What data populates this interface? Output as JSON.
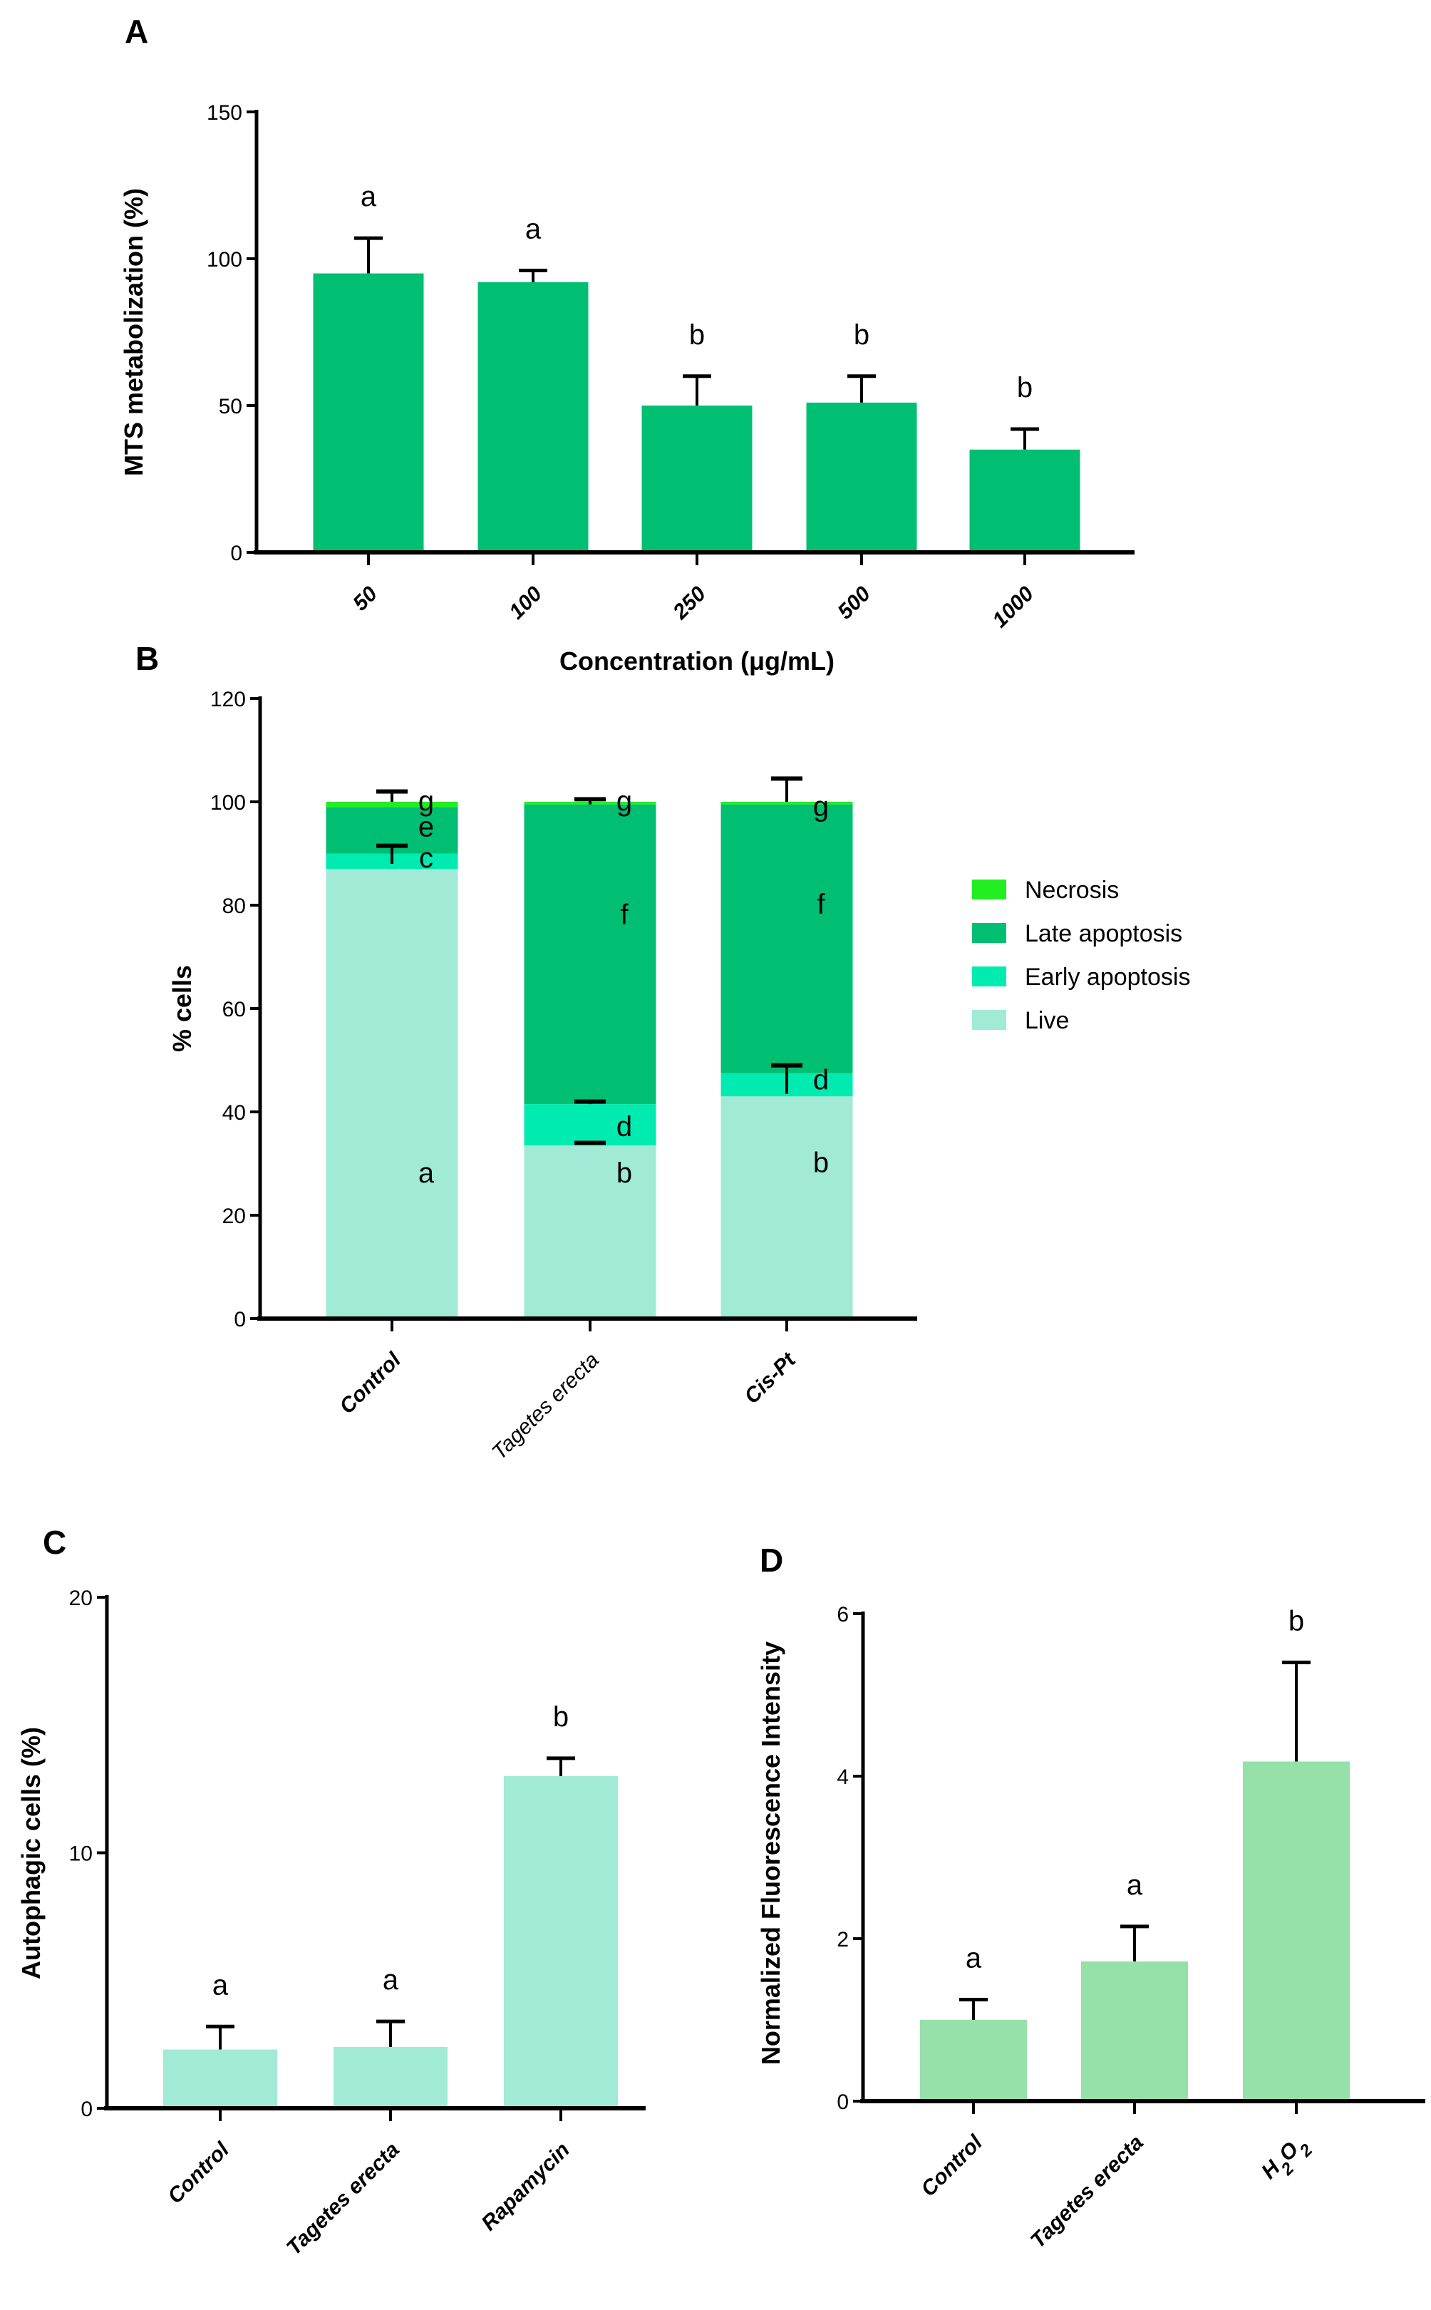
{
  "chart_data": [
    {
      "panel": "A",
      "type": "bar",
      "categories": [
        "50",
        "100",
        "250",
        "500",
        "1000"
      ],
      "values": [
        95,
        92,
        50,
        51,
        35
      ],
      "error_upper": [
        107,
        96,
        60,
        60,
        42
      ],
      "significance": [
        "a",
        "a",
        "b",
        "b",
        "b"
      ],
      "xlabel": "Concentration (μg/mL)",
      "ylabel": "MTS metabolization (%)",
      "ylim": [
        0,
        150
      ],
      "yticks": [
        0,
        50,
        100,
        150
      ],
      "color": "#00BF72"
    },
    {
      "panel": "B",
      "type": "bar",
      "stacked": true,
      "categories": [
        "Control",
        "Tagetes erecta",
        "Cis-Pt"
      ],
      "series": [
        {
          "name": "Live",
          "color": "#A0EAD6",
          "values": [
            87,
            33.5,
            43
          ],
          "significance": [
            "a",
            "b",
            "b"
          ]
        },
        {
          "name": "Early apoptosis",
          "color": "#00EBB0",
          "values": [
            3,
            8,
            4.5
          ],
          "significance": [
            "c",
            "d",
            "d"
          ]
        },
        {
          "name": "Late apoptosis",
          "color": "#00BF72",
          "values": [
            9,
            58,
            52
          ],
          "significance": [
            "e",
            "f",
            "f"
          ]
        },
        {
          "name": "Necrosis",
          "color": "#22EE22",
          "values": [
            1,
            0.5,
            0.5
          ],
          "significance": [
            "g",
            "g",
            "g"
          ]
        }
      ],
      "error_bars": [
        {
          "category": 0,
          "from": 88,
          "to": 91.5
        },
        {
          "category": 0,
          "from": 100,
          "to": 102
        },
        {
          "category": 1,
          "from": 34,
          "to": 34
        },
        {
          "category": 1,
          "from": 41.5,
          "to": 42
        },
        {
          "category": 1,
          "from": 99.5,
          "to": 100.5
        },
        {
          "category": 2,
          "from": 43.5,
          "to": 49
        },
        {
          "category": 2,
          "from": 100,
          "to": 104.5
        }
      ],
      "xlabel": "",
      "ylabel": "% cells",
      "ylim": [
        0,
        120
      ],
      "yticks": [
        0,
        20,
        40,
        60,
        80,
        100,
        120
      ],
      "legend_order": [
        "Necrosis",
        "Late apoptosis",
        "Early apoptosis",
        "Live"
      ],
      "legend_position": "right"
    },
    {
      "panel": "C",
      "type": "bar",
      "categories": [
        "Control",
        "Tagetes erecta",
        "Rapamycin"
      ],
      "values": [
        2.3,
        2.4,
        13
      ],
      "error_upper": [
        3.2,
        3.4,
        13.7
      ],
      "significance": [
        "a",
        "a",
        "b"
      ],
      "xlabel": "",
      "ylabel": "Autophagic cells (%)",
      "ylim": [
        0,
        20
      ],
      "yticks": [
        0,
        10,
        20
      ],
      "color": "#A0EAD6"
    },
    {
      "panel": "D",
      "type": "bar",
      "categories": [
        "Control",
        "Tagetes erecta",
        "H2O2"
      ],
      "values": [
        1.0,
        1.72,
        4.18
      ],
      "error_upper": [
        1.25,
        2.15,
        5.4
      ],
      "significance": [
        "a",
        "a",
        "b"
      ],
      "xlabel": "",
      "ylabel": "Normalized Fluorescence  Intensity",
      "ylim": [
        0,
        6
      ],
      "yticks": [
        0,
        2,
        4,
        6
      ],
      "color": "#96E0AA"
    }
  ]
}
